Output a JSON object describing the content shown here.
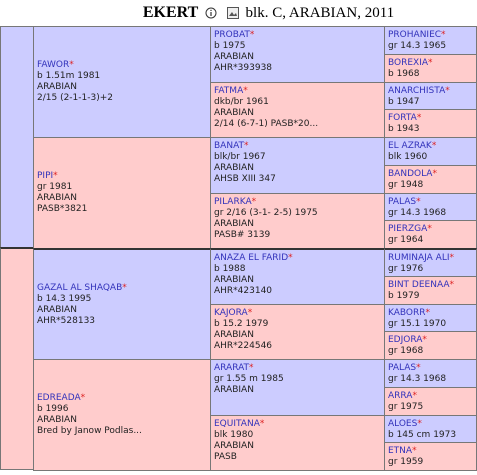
{
  "header": {
    "title": "EKERT",
    "details": "blk. C, ARABIAN, 2011"
  },
  "pedigree": {
    "gen1": [
      {
        "name": "FAWOR",
        "star": "*",
        "lines": [
          "b 1.51m 1981",
          "ARABIAN",
          "2/15 (2-1-1-3)+2"
        ]
      },
      {
        "name": "PIPI",
        "star": "*",
        "lines": [
          "gr 1981",
          "ARABIAN",
          "PASB*3821"
        ]
      },
      {
        "name": "GAZAL AL SHAQAB",
        "star": "*",
        "lines": [
          "b 14.3 1995",
          "ARABIAN",
          "AHR*528133"
        ]
      },
      {
        "name": "EDREADA",
        "star": "*",
        "lines": [
          "b 1996",
          "ARABIAN",
          "Bred by Janow Podlas..."
        ]
      }
    ],
    "gen2": [
      {
        "name": "PROBAT",
        "star": "*",
        "lines": [
          "b 1975",
          "ARABIAN",
          "AHR*393938"
        ]
      },
      {
        "name": "FATMA",
        "star": "*",
        "lines": [
          "dkb/br 1961",
          "ARABIAN",
          "2/14 (6-7-1) PASB*20..."
        ]
      },
      {
        "name": "BANAT",
        "star": "*",
        "lines": [
          "blk/br 1967",
          "ARABIAN",
          "AHSB XIII 347"
        ]
      },
      {
        "name": "PILARKA",
        "star": "*",
        "lines": [
          "gr 2/16 (3-1- 2-5) 1975",
          "ARABIAN",
          "PASB# 3139"
        ]
      },
      {
        "name": "ANAZA EL FARID",
        "star": "*",
        "lines": [
          "b 1988",
          "ARABIAN",
          "AHR*423140"
        ]
      },
      {
        "name": "KAJORA",
        "star": "*",
        "lines": [
          "b 15.2 1979",
          "ARABIAN",
          "AHR*224546"
        ]
      },
      {
        "name": "ARARAT",
        "star": "*",
        "lines": [
          "gr 1.55 m 1985",
          "ARABIAN"
        ]
      },
      {
        "name": "EQUITANA",
        "star": "*",
        "lines": [
          "blk 1980",
          "ARABIAN",
          "PASB"
        ]
      }
    ],
    "gen3": [
      {
        "name": "PROHANIEC",
        "star": "*",
        "lines": [
          "gr 14.3 1965"
        ]
      },
      {
        "name": "BOREXIA",
        "star": "*",
        "lines": [
          "b 1968"
        ]
      },
      {
        "name": "ANARCHISTA",
        "star": "*",
        "lines": [
          "b 1947"
        ]
      },
      {
        "name": "FORTA",
        "star": "*",
        "lines": [
          "b 1943"
        ]
      },
      {
        "name": "EL AZRAK",
        "star": "*",
        "lines": [
          "blk 1960"
        ]
      },
      {
        "name": "BANDOLA",
        "star": "*",
        "lines": [
          "gr 1948"
        ]
      },
      {
        "name": "PALAS",
        "star": "*",
        "lines": [
          "gr 14.3 1968"
        ]
      },
      {
        "name": "PIERZGA",
        "star": "*",
        "lines": [
          "gr 1964"
        ]
      },
      {
        "name": "RUMINAJA ALI",
        "star": "*",
        "lines": [
          "gr 1976"
        ]
      },
      {
        "name": "BINT DEENAA",
        "star": "*",
        "lines": [
          "b 1979"
        ]
      },
      {
        "name": "KABORR",
        "star": "*",
        "lines": [
          "gr 15.1 1970"
        ]
      },
      {
        "name": "EDJORA",
        "star": "*",
        "lines": [
          "gr 1968"
        ]
      },
      {
        "name": "PALAS",
        "star": "*",
        "lines": [
          "gr 14.3 1968"
        ]
      },
      {
        "name": "ARRA",
        "star": "*",
        "lines": [
          "gr 1975"
        ]
      },
      {
        "name": "ALOES",
        "star": "*",
        "lines": [
          "b 145 cm 1973"
        ]
      },
      {
        "name": "ETNA",
        "star": "*",
        "lines": [
          "gr 1959"
        ]
      }
    ]
  }
}
